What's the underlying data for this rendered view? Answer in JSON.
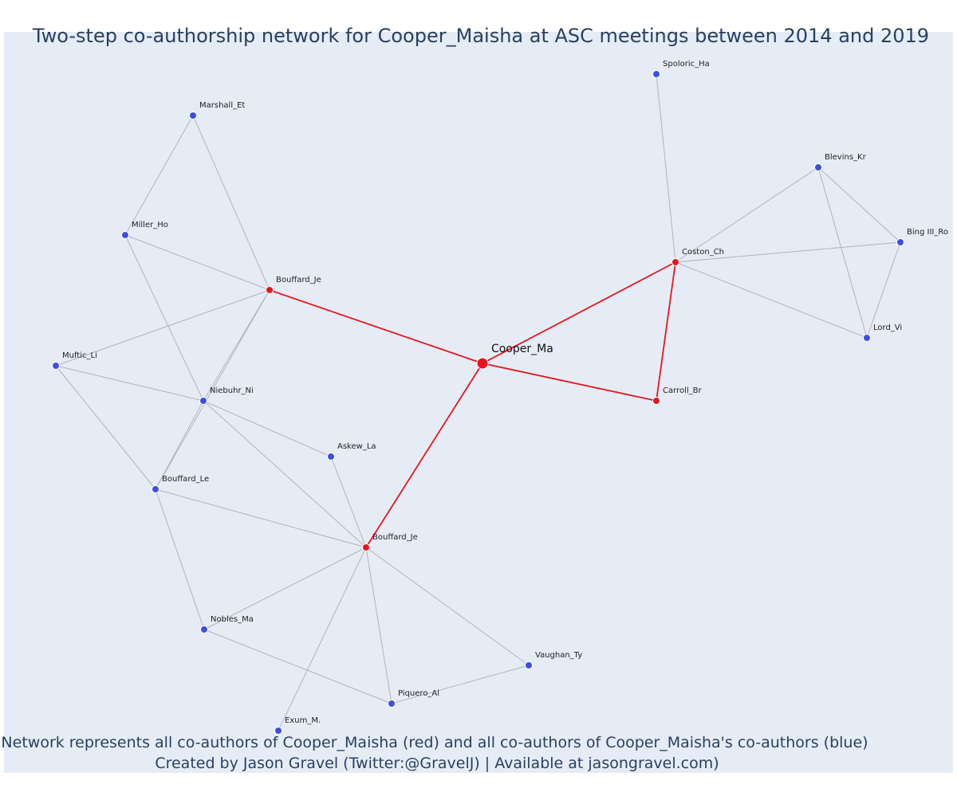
{
  "title": "Two-step co-authorship network for Cooper_Maisha at ASC meetings between 2014 and 2019",
  "caption": {
    "line1": "Network represents all co-authors of Cooper_Maisha (red) and all co-authors of Cooper_Maisha's co-authors (blue)",
    "line2": "Created by Jason Gravel (Twitter:@GravelJ) | Available at jasongravel.com)"
  },
  "colors": {
    "background": "#e5ecf6",
    "red": "#e8141c",
    "blue": "#3d4fe0",
    "gray_edge": "#b3b3bf",
    "title": "#2a3f5f"
  },
  "nodes": [
    {
      "id": "cooper",
      "label": "Cooper_Ma",
      "group": "focal"
    },
    {
      "id": "bouffard_je1",
      "label": "Bouffard_Je",
      "group": "red"
    },
    {
      "id": "coston",
      "label": "Coston_Ch",
      "group": "red"
    },
    {
      "id": "carroll",
      "label": "Carroll_Br",
      "group": "red"
    },
    {
      "id": "bouffard_je2",
      "label": "Bouffard_Je",
      "group": "red"
    },
    {
      "id": "spoloric",
      "label": "Spoloric_Ha",
      "group": "blue"
    },
    {
      "id": "blevins",
      "label": "Blevins_Kr",
      "group": "blue"
    },
    {
      "id": "bing",
      "label": "Bing III_Ro",
      "group": "blue"
    },
    {
      "id": "lord",
      "label": "Lord_Vi",
      "group": "blue"
    },
    {
      "id": "marshall",
      "label": "Marshall_Et",
      "group": "blue"
    },
    {
      "id": "miller",
      "label": "Miller_Ho",
      "group": "blue"
    },
    {
      "id": "muftic",
      "label": "Muftic_Li",
      "group": "blue"
    },
    {
      "id": "niebuhr",
      "label": "Niebuhr_Ni",
      "group": "blue"
    },
    {
      "id": "askew",
      "label": "Askew_La",
      "group": "blue"
    },
    {
      "id": "bouffard_le",
      "label": "Bouffard_Le",
      "group": "blue"
    },
    {
      "id": "nobles",
      "label": "Nobles_Ma",
      "group": "blue"
    },
    {
      "id": "vaughan",
      "label": "Vaughan_Ty",
      "group": "blue"
    },
    {
      "id": "piquero",
      "label": "Piquero_Al",
      "group": "blue"
    },
    {
      "id": "exum",
      "label": "Exum_M.",
      "group": "blue"
    }
  ],
  "edges": [
    {
      "source": "cooper",
      "target": "bouffard_je1",
      "kind": "red"
    },
    {
      "source": "cooper",
      "target": "coston",
      "kind": "red"
    },
    {
      "source": "cooper",
      "target": "carroll",
      "kind": "red"
    },
    {
      "source": "cooper",
      "target": "bouffard_je2",
      "kind": "red"
    },
    {
      "source": "coston",
      "target": "carroll",
      "kind": "red"
    },
    {
      "source": "coston",
      "target": "spoloric",
      "kind": "gray"
    },
    {
      "source": "coston",
      "target": "blevins",
      "kind": "gray"
    },
    {
      "source": "coston",
      "target": "bing",
      "kind": "gray"
    },
    {
      "source": "coston",
      "target": "lord",
      "kind": "gray"
    },
    {
      "source": "blevins",
      "target": "bing",
      "kind": "gray"
    },
    {
      "source": "blevins",
      "target": "lord",
      "kind": "gray"
    },
    {
      "source": "bing",
      "target": "lord",
      "kind": "gray"
    },
    {
      "source": "bouffard_je1",
      "target": "marshall",
      "kind": "gray"
    },
    {
      "source": "bouffard_je1",
      "target": "miller",
      "kind": "gray"
    },
    {
      "source": "bouffard_je1",
      "target": "muftic",
      "kind": "gray"
    },
    {
      "source": "bouffard_je1",
      "target": "niebuhr",
      "kind": "gray"
    },
    {
      "source": "bouffard_je1",
      "target": "bouffard_le",
      "kind": "gray"
    },
    {
      "source": "marshall",
      "target": "miller",
      "kind": "gray"
    },
    {
      "source": "miller",
      "target": "niebuhr",
      "kind": "gray"
    },
    {
      "source": "muftic",
      "target": "niebuhr",
      "kind": "gray"
    },
    {
      "source": "muftic",
      "target": "bouffard_le",
      "kind": "gray"
    },
    {
      "source": "niebuhr",
      "target": "bouffard_le",
      "kind": "gray"
    },
    {
      "source": "niebuhr",
      "target": "askew",
      "kind": "gray"
    },
    {
      "source": "niebuhr",
      "target": "bouffard_je2",
      "kind": "gray"
    },
    {
      "source": "bouffard_le",
      "target": "bouffard_je2",
      "kind": "gray"
    },
    {
      "source": "bouffard_le",
      "target": "nobles",
      "kind": "gray"
    },
    {
      "source": "askew",
      "target": "bouffard_je2",
      "kind": "gray"
    },
    {
      "source": "bouffard_je2",
      "target": "nobles",
      "kind": "gray"
    },
    {
      "source": "bouffard_je2",
      "target": "vaughan",
      "kind": "gray"
    },
    {
      "source": "bouffard_je2",
      "target": "piquero",
      "kind": "gray"
    },
    {
      "source": "bouffard_je2",
      "target": "exum",
      "kind": "gray"
    },
    {
      "source": "nobles",
      "target": "piquero",
      "kind": "gray"
    },
    {
      "source": "vaughan",
      "target": "piquero",
      "kind": "gray"
    }
  ]
}
